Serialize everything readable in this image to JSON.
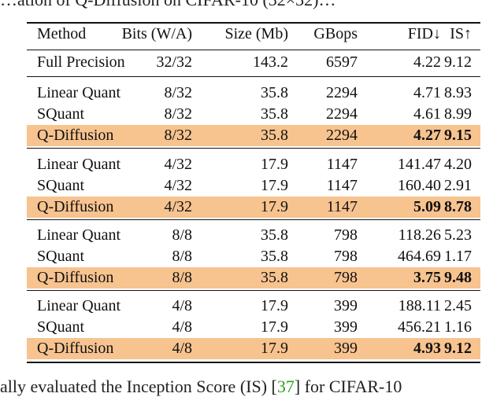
{
  "top_text": "…ation of Q-Diffusion on CIFAR-10 (32×32)…",
  "header": {
    "method": "Method",
    "bits": "Bits (W/A)",
    "size": "Size (Mb)",
    "gbops": "GBops",
    "fid": "FID↓",
    "is": "IS↑"
  },
  "full_precision": {
    "method": "Full Precision",
    "bits": "32/32",
    "size": "143.2",
    "gbops": "6597",
    "fid": "4.22",
    "is": "9.12"
  },
  "groups": [
    {
      "rows": [
        {
          "method": "Linear Quant",
          "bits": "8/32",
          "size": "35.8",
          "gbops": "2294",
          "fid": "4.71",
          "is": "8.93"
        },
        {
          "method": "SQuant",
          "bits": "8/32",
          "size": "35.8",
          "gbops": "2294",
          "fid": "4.61",
          "is": "8.99"
        },
        {
          "method": "Q-Diffusion",
          "bits": "8/32",
          "size": "35.8",
          "gbops": "2294",
          "fid": "4.27",
          "is": "9.15"
        }
      ]
    },
    {
      "rows": [
        {
          "method": "Linear Quant",
          "bits": "4/32",
          "size": "17.9",
          "gbops": "1147",
          "fid": "141.47",
          "is": "4.20"
        },
        {
          "method": "SQuant",
          "bits": "4/32",
          "size": "17.9",
          "gbops": "1147",
          "fid": "160.40",
          "is": "2.91"
        },
        {
          "method": "Q-Diffusion",
          "bits": "4/32",
          "size": "17.9",
          "gbops": "1147",
          "fid": "5.09",
          "is": "8.78"
        }
      ]
    },
    {
      "rows": [
        {
          "method": "Linear Quant",
          "bits": "8/8",
          "size": "35.8",
          "gbops": "798",
          "fid": "118.26",
          "is": "5.23"
        },
        {
          "method": "SQuant",
          "bits": "8/8",
          "size": "35.8",
          "gbops": "798",
          "fid": "464.69",
          "is": "1.17"
        },
        {
          "method": "Q-Diffusion",
          "bits": "8/8",
          "size": "35.8",
          "gbops": "798",
          "fid": "3.75",
          "is": "9.48"
        }
      ]
    },
    {
      "rows": [
        {
          "method": "Linear Quant",
          "bits": "4/8",
          "size": "17.9",
          "gbops": "399",
          "fid": "188.11",
          "is": "2.45"
        },
        {
          "method": "SQuant",
          "bits": "4/8",
          "size": "17.9",
          "gbops": "399",
          "fid": "456.21",
          "is": "1.16"
        },
        {
          "method": "Q-Diffusion",
          "bits": "4/8",
          "size": "17.9",
          "gbops": "399",
          "fid": "4.93",
          "is": "9.12"
        }
      ]
    }
  ],
  "highlight_color": "#f7c38f",
  "caption": {
    "before": "ally evaluated the Inception Score (IS) [",
    "cite": "37",
    "after": "] for CIFAR-10"
  }
}
